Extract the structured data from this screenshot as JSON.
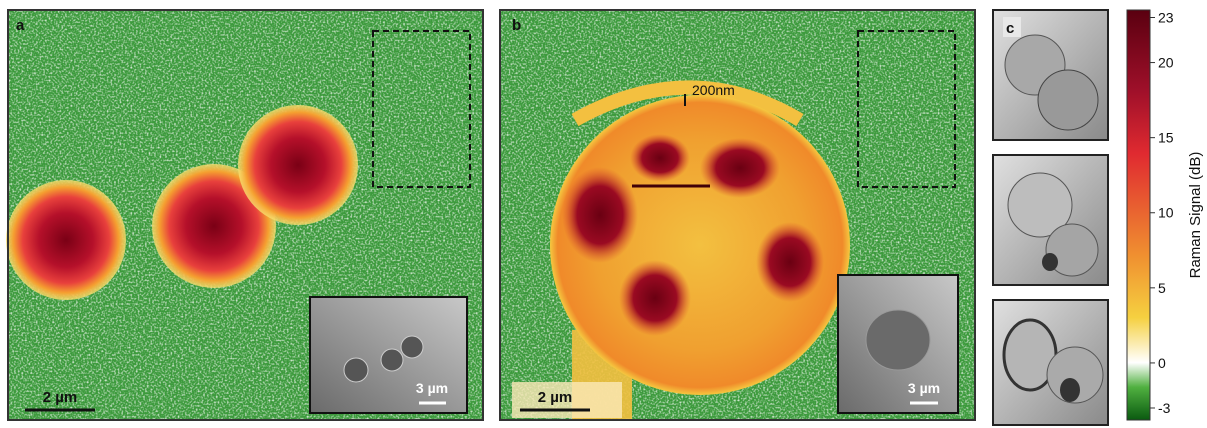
{
  "panels": {
    "a": {
      "label": "a",
      "scale_bar": "2 µm",
      "inset_scale_bar": "3 µm"
    },
    "b": {
      "label": "b",
      "scale_bar": "2 µm",
      "inset_scale_bar": "3 µm",
      "annotation": "200nm"
    },
    "c": {
      "label": "c"
    }
  },
  "colorbar": {
    "label": "Raman Signal (dB)",
    "range": [
      -3.8,
      23.5
    ],
    "ticks": [
      23,
      20,
      15,
      10,
      5,
      0,
      -3
    ]
  }
}
